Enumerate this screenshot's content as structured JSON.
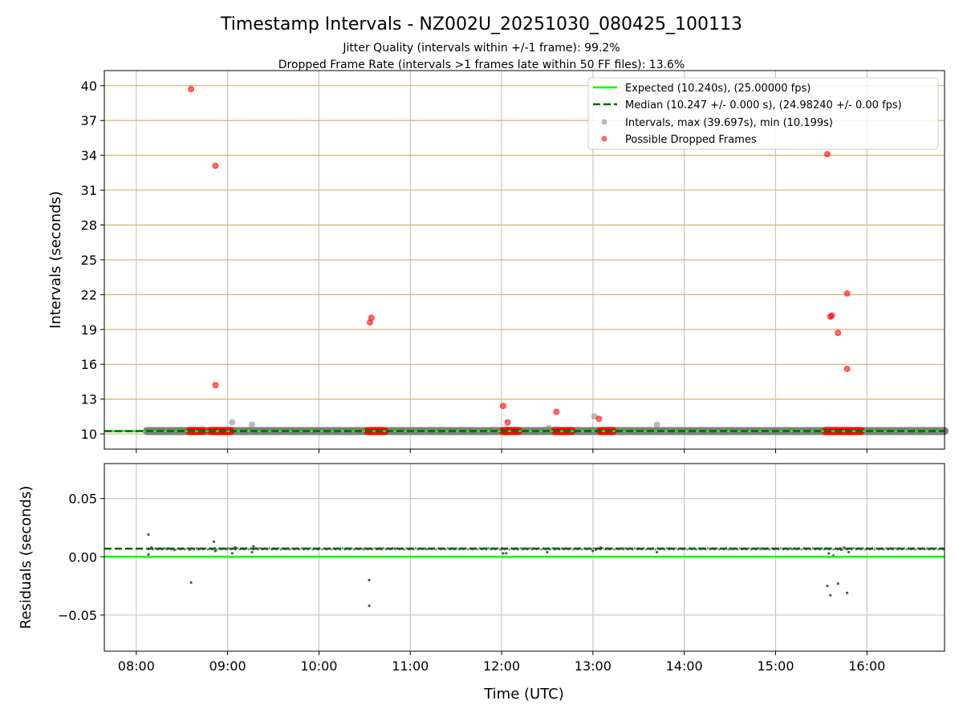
{
  "chart_data": [
    {
      "type": "scatter",
      "title": "Timestamp Intervals - NZ002U_20251030_080425_100113",
      "subtitle_lines": [
        "Jitter Quality (intervals within +/-1 frame): 99.2%",
        "Dropped Frame Rate (intervals >1 frames late within 50 FF files): 13.6%"
      ],
      "ylabel": "Intervals (seconds)",
      "xlabel": "",
      "x_units": "minutes since 00:00 UTC",
      "xlim": [
        459,
        1011
      ],
      "ylim": [
        8.69,
        41.3
      ],
      "yticks": [
        10,
        13,
        16,
        19,
        22,
        25,
        28,
        31,
        34,
        37,
        40
      ],
      "grid": true,
      "legend_placement": "top-right",
      "legend": [
        "Expected (10.240s), (25.00000 fps)",
        "Median (10.247 +/- 0.000 s), (24.98240 +/- 0.00 fps)",
        "Intervals, max (39.697s), min (10.199s)",
        "Possible Dropped Frames"
      ],
      "expected": 10.24,
      "median": 10.247,
      "interval_band": {
        "x_start": 487,
        "x_end": 1011,
        "y": 10.247
      },
      "dropped_clusters": [
        [
          515,
          524
        ],
        [
          529,
          542
        ],
        [
          632,
          643
        ],
        [
          721,
          731
        ],
        [
          755,
          766
        ],
        [
          785,
          793
        ],
        [
          933,
          956
        ]
      ],
      "interval_outliers": {
        "x": [
          543,
          556,
          751,
          781,
          822
        ],
        "y": [
          11.0,
          10.8,
          10.5,
          11.5,
          10.8
        ]
      },
      "dropped_outliers": {
        "x": [
          516,
          532,
          532,
          633.5,
          634.5,
          721,
          724,
          756,
          784,
          934,
          936,
          937,
          941,
          947,
          947
        ],
        "y": [
          39.7,
          33.1,
          14.2,
          19.6,
          20.0,
          12.4,
          11.0,
          11.9,
          11.3,
          34.1,
          20.1,
          20.2,
          18.7,
          22.1,
          15.6
        ]
      }
    },
    {
      "type": "scatter",
      "title": "",
      "ylabel": "Residuals (seconds)",
      "xlabel": "Time (UTC)",
      "xlim": [
        459,
        1011
      ],
      "ylim": [
        -0.081,
        0.08
      ],
      "yticks": [
        0.05,
        0.0,
        -0.05
      ],
      "ytick_labels": [
        "0.05",
        "0.00",
        "−0.05"
      ],
      "xticks": [
        480,
        540,
        600,
        660,
        720,
        780,
        840,
        900,
        960
      ],
      "xtick_labels": [
        "08:00",
        "09:00",
        "10:00",
        "11:00",
        "12:00",
        "13:00",
        "14:00",
        "15:00",
        "16:00"
      ],
      "grid": true,
      "expected_residual": 0.0,
      "median_residual": 0.007,
      "residuals": {
        "x": [
          488,
          488,
          490,
          493,
          500,
          505,
          510,
          515,
          520,
          531,
          532,
          535,
          540,
          543,
          545,
          550,
          556,
          557,
          560,
          570,
          580,
          590,
          600,
          610,
          620,
          630,
          633,
          633,
          640,
          650,
          660,
          670,
          680,
          690,
          700,
          710,
          720,
          721,
          723,
          730,
          740,
          750,
          751,
          755,
          760,
          770,
          780,
          782,
          785,
          790,
          800,
          810,
          822,
          830,
          840,
          850,
          860,
          870,
          880,
          890,
          900,
          910,
          920,
          930,
          934,
          935,
          936,
          938,
          941,
          943,
          945,
          947,
          948,
          950,
          960,
          970,
          980,
          990,
          1000,
          1010,
          516
        ],
        "y": [
          0.019,
          0.002,
          0.008,
          0.007,
          0.007,
          0.006,
          0.007,
          0.006,
          0.007,
          0.013,
          0.005,
          0.007,
          0.007,
          0.003,
          0.008,
          0.007,
          0.004,
          0.009,
          0.007,
          0.007,
          0.007,
          0.007,
          0.007,
          0.007,
          0.007,
          0.007,
          -0.02,
          -0.042,
          0.007,
          0.007,
          0.007,
          0.007,
          0.007,
          0.007,
          0.007,
          0.007,
          0.007,
          0.003,
          0.003,
          0.007,
          0.007,
          0.004,
          0.007,
          0.007,
          0.007,
          0.007,
          0.005,
          0.006,
          0.008,
          0.007,
          0.007,
          0.007,
          0.004,
          0.007,
          0.007,
          0.007,
          0.007,
          0.007,
          0.007,
          0.007,
          0.007,
          0.007,
          0.007,
          0.007,
          -0.025,
          0.003,
          -0.033,
          0.001,
          -0.023,
          0.006,
          0.008,
          -0.031,
          0.004,
          0.007,
          0.007,
          0.007,
          0.007,
          0.007,
          0.007,
          0.007,
          -0.022
        ]
      }
    }
  ]
}
